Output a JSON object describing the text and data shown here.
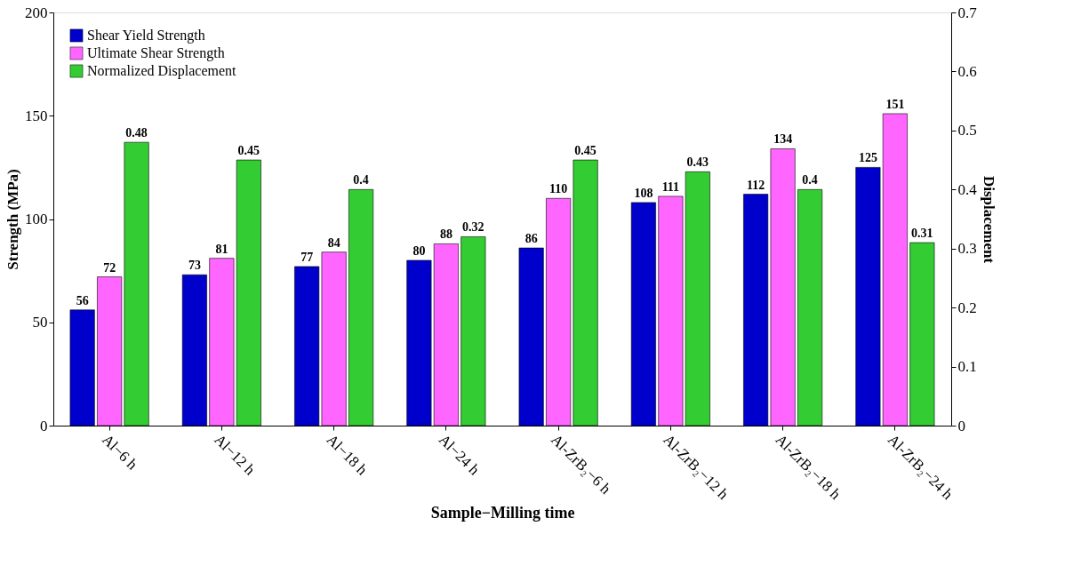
{
  "chart_data": {
    "type": "bar",
    "xlabel": "Sample−Milling time",
    "ylabel": "Strength (MPa)",
    "y2label": "Displacement",
    "categories": [
      "Al−6 h",
      "Al−12 h",
      "Al−18 h",
      "Al−24 h",
      "Al-ZrB₂−6 h",
      "Al-ZrB₂−12 h",
      "Al-ZrB₂−18 h",
      "Al-ZrB₂−24 h"
    ],
    "series": [
      {
        "name": "Shear Yield Strength",
        "color": "#0000cc",
        "values": [
          56,
          73,
          77,
          80,
          86,
          108,
          112,
          125
        ]
      },
      {
        "name": "Ultimate Shear Strength",
        "color": "#ff66ff",
        "values": [
          72,
          81,
          84,
          88,
          110,
          111,
          134,
          151
        ]
      },
      {
        "name": "Normalized Displacement",
        "color": "#33cc33",
        "axis": "y2",
        "values": [
          0.48,
          0.45,
          0.4,
          0.32,
          0.45,
          0.43,
          0.4,
          0.31
        ]
      }
    ],
    "ylim": [
      0,
      200
    ],
    "yticks": [
      0,
      50,
      100,
      150,
      200
    ],
    "y2lim": [
      0,
      0.7
    ],
    "y2ticks": [
      0,
      0.1,
      0.2,
      0.3,
      0.4,
      0.5,
      0.6,
      0.7
    ],
    "data_labels": true,
    "legend": "top left",
    "grid": false
  }
}
